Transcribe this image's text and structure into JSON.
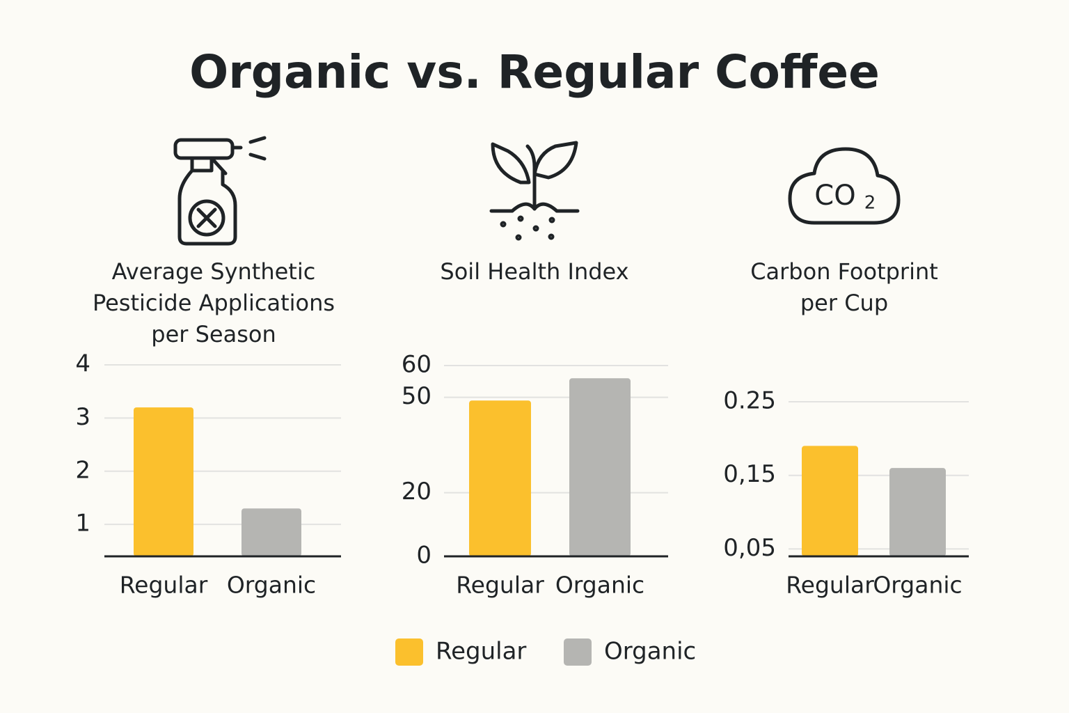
{
  "title": "Organic vs. Regular Coffee",
  "legend": [
    {
      "name": "Regular",
      "color": "#fbc02d"
    },
    {
      "name": "Organic",
      "color": "#b5b5b2"
    }
  ],
  "chart_data": [
    {
      "type": "bar",
      "title": "Average Synthetic Pesticide Applications per Season",
      "categories": [
        "Regular",
        "Organic"
      ],
      "values": [
        3.2,
        1.3
      ],
      "colors": [
        "#fbc02d",
        "#b5b5b2"
      ],
      "ylim": [
        0.4,
        4
      ],
      "yticks": [
        1,
        2,
        3,
        4
      ],
      "grid": true
    },
    {
      "type": "bar",
      "title": "Soil Health Index",
      "categories": [
        "Regular",
        "Organic"
      ],
      "values": [
        49,
        56
      ],
      "colors": [
        "#fbc02d",
        "#b5b5b2"
      ],
      "ylim": [
        0,
        60
      ],
      "yticks": [
        0,
        20,
        50,
        60
      ],
      "grid": true
    },
    {
      "type": "bar",
      "title": "Carbon Footprint per Cup",
      "categories": [
        "Regular",
        "Organic"
      ],
      "values": [
        0.19,
        0.16
      ],
      "colors": [
        "#fbc02d",
        "#b5b5b2"
      ],
      "ylim": [
        0.04,
        0.25
      ],
      "yticks": [
        {
          "value": 0.05,
          "label": "0,05"
        },
        {
          "value": 0.15,
          "label": "0,15"
        },
        0.25
      ],
      "grid": true
    }
  ]
}
